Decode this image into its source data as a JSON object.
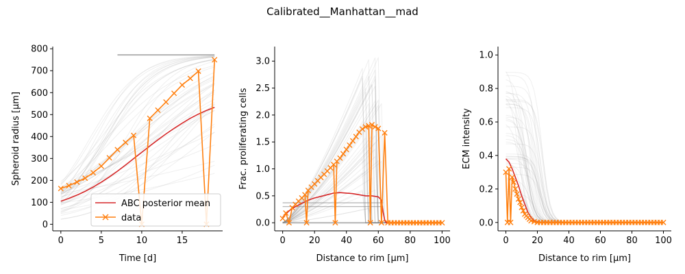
{
  "figure": {
    "title": "Calibrated__Manhattan__mad"
  },
  "colors": {
    "posterior": "#d62728",
    "data": "#ff7f0e",
    "samples": "#808080"
  },
  "chart_data": [
    {
      "type": "line",
      "xlabel": "Time [d]",
      "ylabel": "Spheroid radius [μm]",
      "xlim": [
        -1,
        20
      ],
      "ylim": [
        -30,
        810
      ],
      "xticks": [
        0,
        5,
        10,
        15
      ],
      "yticks": [
        0,
        100,
        200,
        300,
        400,
        500,
        600,
        700,
        800
      ],
      "grid": false,
      "legend": "lower-right",
      "series": [
        {
          "name": "ABC posterior mean",
          "x": [
            0,
            1,
            2,
            3,
            4,
            5,
            6,
            7,
            8,
            9,
            10,
            11,
            12,
            13,
            14,
            15,
            16,
            17,
            18,
            19
          ],
          "y": [
            105,
            118,
            133,
            150,
            170,
            192,
            216,
            242,
            270,
            299,
            328,
            357,
            385,
            412,
            437,
            461,
            483,
            502,
            519,
            533
          ]
        },
        {
          "name": "data",
          "marker": "x",
          "x": [
            0,
            1,
            2,
            3,
            4,
            5,
            6,
            7,
            8,
            9,
            10,
            11,
            12,
            13,
            14,
            15,
            16,
            17,
            18,
            19
          ],
          "y": [
            163,
            176,
            192,
            210,
            235,
            265,
            303,
            340,
            373,
            405,
            0,
            483,
            520,
            557,
            597,
            635,
            665,
            698,
            0,
            750
          ]
        }
      ]
    },
    {
      "type": "line",
      "xlabel": "Distance to rim [μm]",
      "ylabel": "Frac. proliferating cells",
      "xlim": [
        -5,
        105
      ],
      "ylim": [
        -0.15,
        3.27
      ],
      "xticks": [
        0,
        20,
        40,
        60,
        80,
        100
      ],
      "yticks": [
        "0.0",
        "0.5",
        "1.0",
        "1.5",
        "2.0",
        "2.5",
        "3.0"
      ],
      "grid": false,
      "series": [
        {
          "name": "ABC posterior mean",
          "x": [
            0,
            4,
            8,
            12,
            16,
            20,
            24,
            28,
            32,
            36,
            40,
            44,
            48,
            52,
            56,
            60,
            62,
            63,
            64,
            65,
            70,
            80,
            90,
            100
          ],
          "y": [
            0.1,
            0.22,
            0.3,
            0.36,
            0.42,
            0.46,
            0.49,
            0.52,
            0.55,
            0.56,
            0.55,
            0.54,
            0.52,
            0.5,
            0.5,
            0.48,
            0.42,
            0.2,
            0.05,
            0.0,
            0.0,
            0.0,
            0.0,
            0.0
          ]
        },
        {
          "name": "data",
          "marker": "x",
          "x": [
            0,
            2,
            4,
            6,
            8,
            10,
            12,
            14,
            15,
            16,
            18,
            20,
            22,
            24,
            26,
            28,
            30,
            32,
            33,
            34,
            36,
            38,
            40,
            42,
            44,
            46,
            48,
            50,
            52,
            54,
            55,
            56,
            58,
            60,
            62,
            64,
            66,
            68,
            70,
            72,
            74,
            76,
            78,
            80,
            82,
            84,
            86,
            88,
            90,
            92,
            94,
            96,
            98,
            100
          ],
          "y": [
            0.08,
            0.18,
            0.0,
            0.28,
            0.34,
            0.4,
            0.46,
            0.52,
            0.0,
            0.6,
            0.66,
            0.72,
            0.78,
            0.84,
            0.9,
            0.96,
            1.02,
            1.08,
            0.0,
            1.14,
            1.2,
            1.28,
            1.36,
            1.44,
            1.52,
            1.6,
            1.68,
            1.74,
            1.78,
            1.8,
            0.0,
            1.82,
            1.78,
            1.75,
            0.0,
            1.67,
            0.0,
            0.0,
            0.0,
            0.0,
            0.0,
            0.0,
            0.0,
            0.0,
            0.0,
            0.0,
            0.0,
            0.0,
            0.0,
            0.0,
            0.0,
            0.0,
            0.0,
            0.0
          ]
        }
      ]
    },
    {
      "type": "line",
      "xlabel": "Distance to rim [μm]",
      "ylabel": "ECM intensity",
      "xlim": [
        -5,
        105
      ],
      "ylim": [
        -0.05,
        1.05
      ],
      "xticks": [
        0,
        20,
        40,
        60,
        80,
        100
      ],
      "yticks": [
        "0.0",
        "0.2",
        "0.4",
        "0.6",
        "0.8",
        "1.0"
      ],
      "grid": false,
      "series": [
        {
          "name": "ABC posterior mean",
          "x": [
            0,
            2,
            4,
            6,
            8,
            10,
            12,
            14,
            16,
            18,
            20,
            22,
            26,
            30,
            40,
            60,
            80,
            100
          ],
          "y": [
            0.38,
            0.36,
            0.32,
            0.27,
            0.22,
            0.16,
            0.11,
            0.06,
            0.03,
            0.01,
            0.005,
            0.0,
            0.0,
            0.0,
            0.0,
            0.0,
            0.0,
            0.0
          ]
        },
        {
          "name": "data",
          "marker": "x",
          "x": [
            0,
            1,
            2,
            3,
            4,
            5,
            6,
            7,
            8,
            9,
            10,
            11,
            12,
            13,
            14,
            15,
            16,
            18,
            20,
            22,
            24,
            26,
            28,
            30,
            32,
            34,
            36,
            38,
            40,
            42,
            44,
            46,
            48,
            50,
            52,
            54,
            56,
            58,
            60,
            62,
            64,
            66,
            68,
            70,
            72,
            74,
            76,
            78,
            80,
            82,
            84,
            86,
            88,
            90,
            92,
            94,
            96,
            98,
            100
          ],
          "y": [
            0.3,
            0.0,
            0.32,
            0.0,
            0.27,
            0.24,
            0.2,
            0.17,
            0.14,
            0.12,
            0.09,
            0.07,
            0.05,
            0.04,
            0.03,
            0.02,
            0.01,
            0.005,
            0.0,
            0.0,
            0.0,
            0.0,
            0.0,
            0.0,
            0.0,
            0.0,
            0.0,
            0.0,
            0.0,
            0.0,
            0.0,
            0.0,
            0.0,
            0.0,
            0.0,
            0.0,
            0.0,
            0.0,
            0.0,
            0.0,
            0.0,
            0.0,
            0.0,
            0.0,
            0.0,
            0.0,
            0.0,
            0.0,
            0.0,
            0.0,
            0.0,
            0.0,
            0.0,
            0.0,
            0.0,
            0.0,
            0.0,
            0.0,
            0.0
          ]
        }
      ]
    }
  ]
}
